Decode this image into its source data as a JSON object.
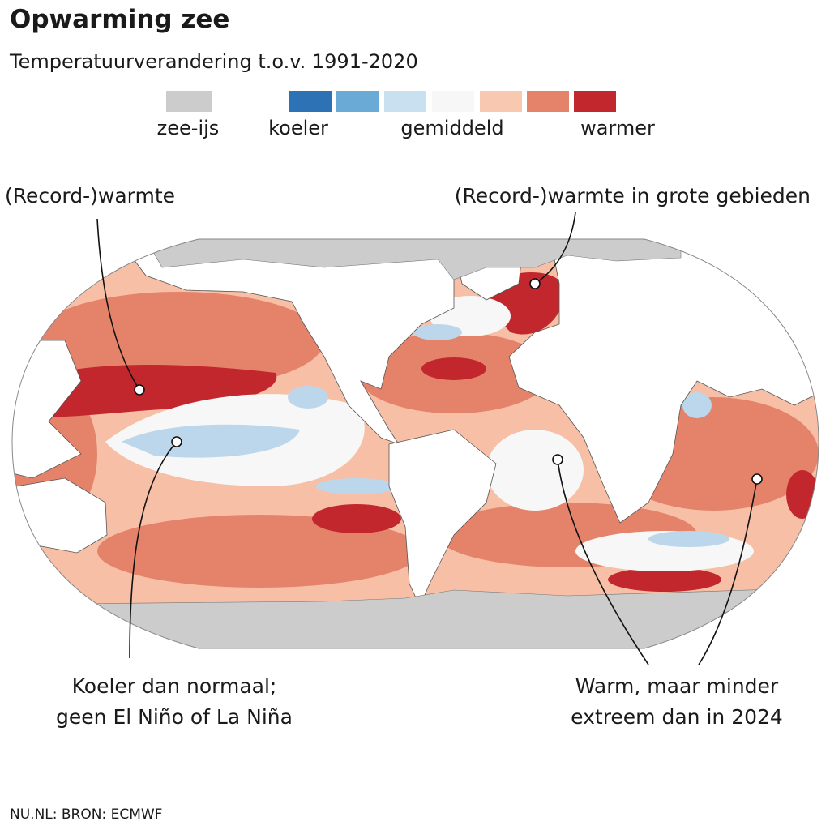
{
  "header": {
    "title": "Opwarming zee",
    "subtitle": "Temperatuurverandering t.o.v. 1991-2020"
  },
  "legend": {
    "swatches": [
      "#cccccc",
      "#2c72b5",
      "#6aaad6",
      "#c8e0f0",
      "#f7f7f7",
      "#f9c8b0",
      "#e4836a",
      "#c1272d"
    ],
    "labels": [
      "zee-ijs",
      "koeler",
      "gemiddeld",
      "warmer"
    ]
  },
  "annotations": [
    {
      "lines": [
        "(Record-)warmte"
      ]
    },
    {
      "lines": [
        "(Record-)warmte in grote gebieden"
      ]
    },
    {
      "lines": [
        "Koeler dan normaal;",
        "geen El Niño of La Niña"
      ]
    },
    {
      "lines": [
        "Warm, maar minder",
        "extreem dan in 2024"
      ]
    }
  ],
  "footer": {
    "source": "NU.NL: BRON: ECMWF"
  }
}
